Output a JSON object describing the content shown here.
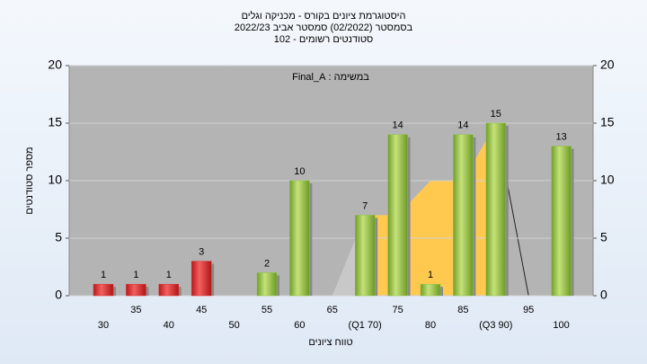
{
  "chart_data": {
    "type": "bar",
    "title": [
      "היסטוגרמת ציונים בקורס - מכניקה וגלים",
      "בסמסטר  (02/2022)  סמסטר אביב 2022/23",
      "סטודנטים רשומים - 102"
    ],
    "annotation": "במשימה : Final_A",
    "y_label": "מספר סטודנטים",
    "x_label": "טווח ציונים",
    "categories": [
      "30",
      "35",
      "40",
      "45",
      "50",
      "55",
      "60",
      "65",
      "(Q1 70)",
      "75",
      "80",
      "85",
      "(Q3 90)",
      "95",
      "100"
    ],
    "values": [
      1,
      1,
      1,
      3,
      null,
      2,
      10,
      null,
      7,
      14,
      1,
      14,
      15,
      null,
      13
    ],
    "colors": [
      "#e03232",
      "#e03232",
      "#e03232",
      "#e03232",
      null,
      "#8dc641",
      "#8dc641",
      null,
      "#8dc641",
      "#8dc641",
      "#8dc641",
      "#8dc641",
      "#8dc641",
      null,
      "#8dc641"
    ],
    "area_values": [
      null,
      null,
      null,
      null,
      null,
      null,
      null,
      0,
      7,
      7,
      10,
      10,
      15,
      0,
      null
    ],
    "area_colors": [
      "#c8c8c8",
      "#ffc94f"
    ],
    "ylim": [
      0,
      20
    ],
    "yticks": [
      0,
      5,
      10,
      15,
      20
    ],
    "y2lim": [
      0,
      20
    ],
    "y2ticks": [
      0,
      5,
      10,
      15,
      20
    ],
    "grid": true
  }
}
